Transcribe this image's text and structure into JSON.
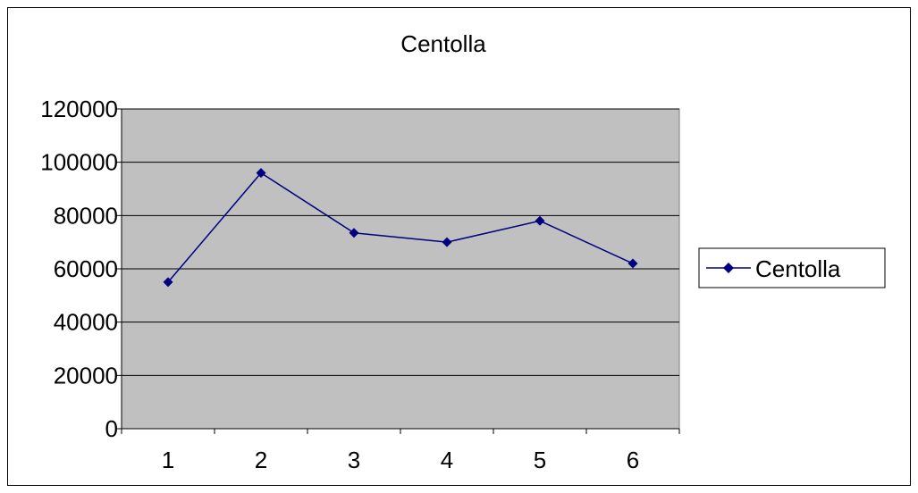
{
  "chart_data": {
    "type": "line",
    "title": "Centolla",
    "xlabel": "",
    "ylabel": "",
    "categories": [
      "1",
      "2",
      "3",
      "4",
      "5",
      "6"
    ],
    "series": [
      {
        "name": "Centolla",
        "values": [
          55000,
          96000,
          73500,
          70000,
          78000,
          62000
        ]
      }
    ],
    "ylim": [
      0,
      120000
    ],
    "yticks": [
      "0",
      "20000",
      "40000",
      "60000",
      "80000",
      "100000",
      "120000"
    ],
    "grid": true,
    "legend": "right",
    "colors": {
      "series": "#000080",
      "plot_bg": "#c0c0c0",
      "grid": "#000000"
    }
  }
}
